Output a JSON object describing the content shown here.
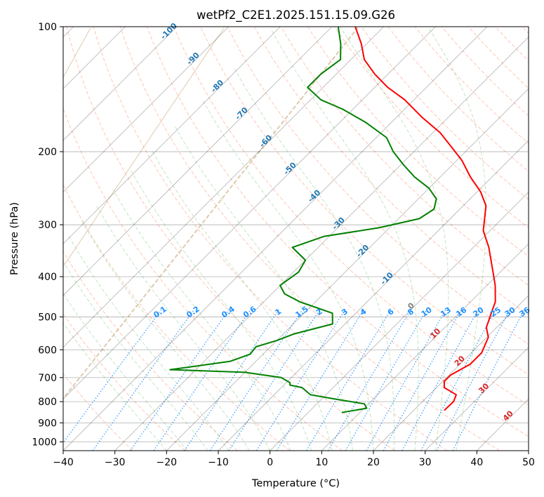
{
  "chart_data": {
    "type": "line",
    "title": "wetPf2_C2E1.2025.151.15.09.G26",
    "xlabel": "Temperature (°C)",
    "ylabel": "Pressure (hPa)",
    "xlim": [
      -40,
      50
    ],
    "ylim": [
      1050,
      100
    ],
    "yscale": "log",
    "grid": true,
    "x_ticks": [
      -40,
      -30,
      -20,
      -10,
      0,
      10,
      20,
      30,
      40,
      50
    ],
    "y_ticks": [
      1000,
      900,
      800,
      700,
      600,
      500,
      400,
      300,
      200,
      100
    ],
    "isotherm_labels": [
      -100,
      -90,
      -80,
      -70,
      -60,
      -50,
      -40,
      -30,
      -20,
      -10,
      0,
      10,
      20,
      30,
      40
    ],
    "mixing_ratio_labels": [
      "0.1",
      "0.2",
      "0.4",
      "0.6",
      "1",
      "1.5",
      "2",
      "3",
      "4",
      "6",
      "8",
      "10",
      "13",
      "16",
      "20",
      "25",
      "30",
      "36"
    ],
    "colors": {
      "temperature": "#ff0000",
      "dewpoint": "#008000",
      "isotherm": "#000000",
      "isotherm_label_cold": "#1f77b4",
      "isotherm_label_zero": "#7f7f7f",
      "isotherm_label_warm": "#d62728",
      "dry_adiabat": "#ff9f80",
      "moist_adiabat": "#8fcf8f",
      "mixing_ratio": "#1e90ff",
      "theta_e_curve": "#d2b48c"
    },
    "series": [
      {
        "key": "temperature",
        "points": [
          {
            "p": 840,
            "t": 25.9
          },
          {
            "p": 800,
            "t": 26.0
          },
          {
            "p": 770,
            "t": 25.2
          },
          {
            "p": 740,
            "t": 21.5
          },
          {
            "p": 715,
            "t": 20.3
          },
          {
            "p": 690,
            "t": 20.3
          },
          {
            "p": 650,
            "t": 22.0
          },
          {
            "p": 610,
            "t": 22.0
          },
          {
            "p": 560,
            "t": 20.3
          },
          {
            "p": 530,
            "t": 18.0
          },
          {
            "p": 490,
            "t": 16.2
          },
          {
            "p": 460,
            "t": 14.8
          },
          {
            "p": 420,
            "t": 11.6
          },
          {
            "p": 390,
            "t": 8.6
          },
          {
            "p": 340,
            "t": 3.0
          },
          {
            "p": 310,
            "t": -1.3
          },
          {
            "p": 270,
            "t": -5.6
          },
          {
            "p": 250,
            "t": -9.3
          },
          {
            "p": 230,
            "t": -14.2
          },
          {
            "p": 210,
            "t": -19.0
          },
          {
            "p": 195,
            "t": -23.6
          },
          {
            "p": 180,
            "t": -28.6
          },
          {
            "p": 165,
            "t": -35.2
          },
          {
            "p": 150,
            "t": -41.8
          },
          {
            "p": 140,
            "t": -47.5
          },
          {
            "p": 130,
            "t": -52.6
          },
          {
            "p": 120,
            "t": -57.4
          },
          {
            "p": 110,
            "t": -61.0
          },
          {
            "p": 100,
            "t": -65.5
          }
        ]
      },
      {
        "key": "dewpoint",
        "points": [
          {
            "p": 850,
            "t": 6.5
          },
          {
            "p": 830,
            "t": 10.5
          },
          {
            "p": 810,
            "t": 9.2
          },
          {
            "p": 790,
            "t": 3.0
          },
          {
            "p": 770,
            "t": -3.0
          },
          {
            "p": 740,
            "t": -6.0
          },
          {
            "p": 730,
            "t": -8.8
          },
          {
            "p": 720,
            "t": -9.3
          },
          {
            "p": 700,
            "t": -12.0
          },
          {
            "p": 680,
            "t": -20.0
          },
          {
            "p": 670,
            "t": -35.0
          },
          {
            "p": 655,
            "t": -30.0
          },
          {
            "p": 640,
            "t": -25.0
          },
          {
            "p": 615,
            "t": -22.5
          },
          {
            "p": 590,
            "t": -22.8
          },
          {
            "p": 570,
            "t": -20.0
          },
          {
            "p": 550,
            "t": -18.0
          },
          {
            "p": 520,
            "t": -12.4
          },
          {
            "p": 490,
            "t": -14.5
          },
          {
            "p": 460,
            "t": -23.0
          },
          {
            "p": 440,
            "t": -27.5
          },
          {
            "p": 420,
            "t": -30.0
          },
          {
            "p": 390,
            "t": -29.0
          },
          {
            "p": 365,
            "t": -30.0
          },
          {
            "p": 340,
            "t": -35.0
          },
          {
            "p": 320,
            "t": -31.0
          },
          {
            "p": 305,
            "t": -22.0
          },
          {
            "p": 290,
            "t": -16.0
          },
          {
            "p": 275,
            "t": -15.0
          },
          {
            "p": 260,
            "t": -16.5
          },
          {
            "p": 245,
            "t": -20.0
          },
          {
            "p": 230,
            "t": -25.0
          },
          {
            "p": 215,
            "t": -29.5
          },
          {
            "p": 200,
            "t": -34.0
          },
          {
            "p": 185,
            "t": -38.0
          },
          {
            "p": 170,
            "t": -45.0
          },
          {
            "p": 158,
            "t": -52.0
          },
          {
            "p": 150,
            "t": -58.0
          },
          {
            "p": 140,
            "t": -63.0
          },
          {
            "p": 130,
            "t": -63.0
          },
          {
            "p": 120,
            "t": -62.0
          },
          {
            "p": 110,
            "t": -65.0
          },
          {
            "p": 100,
            "t": -68.8
          }
        ]
      }
    ]
  }
}
